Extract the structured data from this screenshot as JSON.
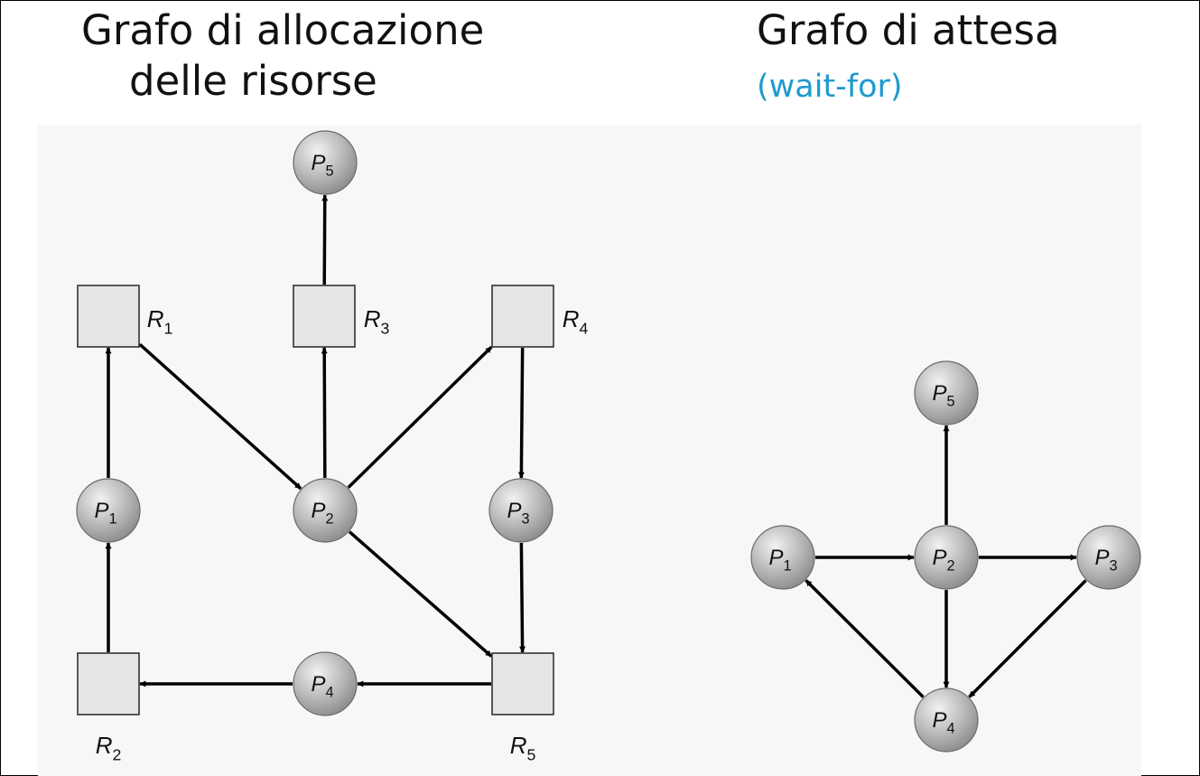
{
  "left_panel": {
    "title_line1": "Grafo di allocazione",
    "title_line2": "delle risorse",
    "processes": [
      {
        "id": "P5",
        "letter": "P",
        "sub": "5"
      },
      {
        "id": "P1",
        "letter": "P",
        "sub": "1"
      },
      {
        "id": "P2",
        "letter": "P",
        "sub": "2"
      },
      {
        "id": "P3",
        "letter": "P",
        "sub": "3"
      },
      {
        "id": "P4",
        "letter": "P",
        "sub": "4"
      }
    ],
    "resources": [
      {
        "id": "R1",
        "letter": "R",
        "sub": "1"
      },
      {
        "id": "R3",
        "letter": "R",
        "sub": "3"
      },
      {
        "id": "R4",
        "letter": "R",
        "sub": "4"
      },
      {
        "id": "R2",
        "letter": "R",
        "sub": "2"
      },
      {
        "id": "R5",
        "letter": "R",
        "sub": "5"
      }
    ],
    "edges": [
      [
        "R3",
        "P5"
      ],
      [
        "P1",
        "R1"
      ],
      [
        "R1",
        "P2"
      ],
      [
        "P2",
        "R3"
      ],
      [
        "P2",
        "R4"
      ],
      [
        "R4",
        "P3"
      ],
      [
        "P2",
        "R5"
      ],
      [
        "P3",
        "R5"
      ],
      [
        "R2",
        "P1"
      ],
      [
        "R5",
        "P4"
      ],
      [
        "P4",
        "R2"
      ]
    ]
  },
  "right_panel": {
    "title": "Grafo di attesa",
    "subtitle": "(wait-for)",
    "processes": [
      {
        "id": "P5",
        "letter": "P",
        "sub": "5"
      },
      {
        "id": "P1",
        "letter": "P",
        "sub": "1"
      },
      {
        "id": "P2",
        "letter": "P",
        "sub": "2"
      },
      {
        "id": "P3",
        "letter": "P",
        "sub": "3"
      },
      {
        "id": "P4",
        "letter": "P",
        "sub": "4"
      }
    ],
    "edges": [
      [
        "P2",
        "P5"
      ],
      [
        "P1",
        "P2"
      ],
      [
        "P2",
        "P3"
      ],
      [
        "P2",
        "P4"
      ],
      [
        "P3",
        "P4"
      ],
      [
        "P4",
        "P1"
      ]
    ]
  },
  "colors": {
    "subtitle": "#1e9ad0",
    "node_fill": "#b4b4b4",
    "resource_fill": "#e6e6e6",
    "edge": "#000000"
  }
}
